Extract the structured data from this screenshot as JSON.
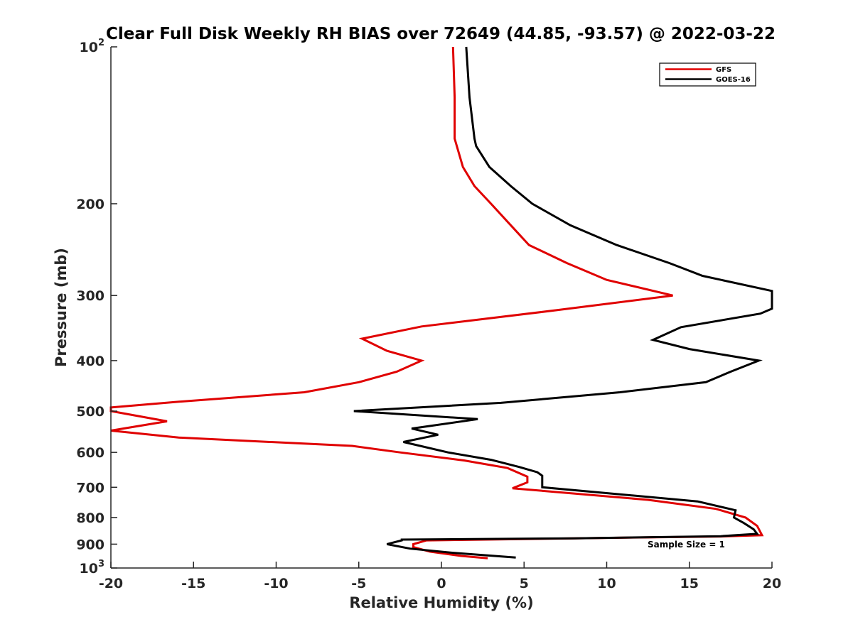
{
  "chart_data": {
    "type": "line",
    "title": "Clear Full Disk Weekly RH BIAS over 72649 (44.85, -93.57) @ 2022-03-22",
    "xlabel": "Relative Humidity (%)",
    "ylabel": "Pressure (mb)",
    "xlim": [
      -20,
      20
    ],
    "ylim": [
      100,
      1000
    ],
    "y_scale": "log",
    "y_reversed": true,
    "x_ticks": [
      "-20",
      "-15",
      "-10",
      "-5",
      "0",
      "5",
      "10",
      "15",
      "20"
    ],
    "y_ticks": [
      {
        "value": 100,
        "label": "10",
        "sup": "2"
      },
      {
        "value": 200,
        "label": "200",
        "sup": ""
      },
      {
        "value": 300,
        "label": "300",
        "sup": ""
      },
      {
        "value": 400,
        "label": "400",
        "sup": ""
      },
      {
        "value": 500,
        "label": "500",
        "sup": ""
      },
      {
        "value": 600,
        "label": "600",
        "sup": ""
      },
      {
        "value": 700,
        "label": "700",
        "sup": ""
      },
      {
        "value": 800,
        "label": "800",
        "sup": ""
      },
      {
        "value": 900,
        "label": "900",
        "sup": ""
      },
      {
        "value": 1000,
        "label": "10",
        "sup": "3"
      }
    ],
    "grid": false,
    "legend_position": "top-right",
    "annotation": "Sample Size = 1",
    "series": [
      {
        "name": "GFS",
        "color": "#e00000",
        "points": [
          [
            0.7,
            100
          ],
          [
            0.8,
            125
          ],
          [
            0.8,
            150
          ],
          [
            1.3,
            170
          ],
          [
            2.0,
            185
          ],
          [
            3.0,
            200
          ],
          [
            4.2,
            220
          ],
          [
            5.3,
            240
          ],
          [
            7.6,
            260
          ],
          [
            10.0,
            280
          ],
          [
            14.0,
            300
          ],
          [
            7.0,
            320
          ],
          [
            -1.2,
            344
          ],
          [
            -4.8,
            363
          ],
          [
            -3.3,
            383
          ],
          [
            -1.2,
            400
          ],
          [
            -2.7,
            420
          ],
          [
            -5.0,
            440
          ],
          [
            -8.3,
            460
          ],
          [
            -16.0,
            480
          ],
          [
            -20.0,
            492
          ],
          [
            -20.0,
            500
          ],
          [
            -16.6,
            523
          ],
          [
            -20.0,
            545
          ],
          [
            -15.9,
            562
          ],
          [
            -5.4,
            583
          ],
          [
            -2.5,
            600
          ],
          [
            1.4,
            622
          ],
          [
            4.0,
            643
          ],
          [
            5.2,
            668
          ],
          [
            5.2,
            685
          ],
          [
            4.3,
            703
          ],
          [
            12.5,
            740
          ],
          [
            16.6,
            770
          ],
          [
            18.4,
            800
          ],
          [
            19.1,
            830
          ],
          [
            19.4,
            865
          ],
          [
            16.9,
            870
          ],
          [
            8.0,
            877
          ],
          [
            -0.9,
            885
          ],
          [
            -1.7,
            900
          ],
          [
            -1.7,
            912
          ],
          [
            -0.7,
            930
          ],
          [
            1.2,
            948
          ],
          [
            2.8,
            958
          ]
        ]
      },
      {
        "name": "GOES-16",
        "color": "#000000",
        "points": [
          [
            1.5,
            100
          ],
          [
            1.7,
            125
          ],
          [
            2.0,
            150
          ],
          [
            2.1,
            155
          ],
          [
            2.9,
            170
          ],
          [
            4.2,
            185
          ],
          [
            5.5,
            200
          ],
          [
            7.8,
            220
          ],
          [
            10.6,
            240
          ],
          [
            13.8,
            260
          ],
          [
            15.8,
            275
          ],
          [
            20.0,
            294
          ],
          [
            20.0,
            318
          ],
          [
            19.3,
            325
          ],
          [
            14.5,
            345
          ],
          [
            12.8,
            365
          ],
          [
            15.0,
            380
          ],
          [
            19.2,
            400
          ],
          [
            17.5,
            420
          ],
          [
            16.0,
            440
          ],
          [
            10.8,
            460
          ],
          [
            3.6,
            482
          ],
          [
            -5.3,
            500
          ],
          [
            2.2,
            518
          ],
          [
            -1.8,
            540
          ],
          [
            -0.2,
            555
          ],
          [
            -2.3,
            573
          ],
          [
            0.4,
            600
          ],
          [
            3.0,
            620
          ],
          [
            4.7,
            640
          ],
          [
            5.8,
            655
          ],
          [
            6.1,
            665
          ],
          [
            6.1,
            685
          ],
          [
            6.1,
            700
          ],
          [
            15.5,
            745
          ],
          [
            17.8,
            775
          ],
          [
            17.7,
            800
          ],
          [
            18.3,
            820
          ],
          [
            18.9,
            843
          ],
          [
            19.1,
            860
          ],
          [
            16.9,
            869
          ],
          [
            8.0,
            877
          ],
          [
            -2.4,
            882
          ],
          [
            -2.4,
            885
          ],
          [
            -3.3,
            900
          ],
          [
            -1.9,
            918
          ],
          [
            0.7,
            935
          ],
          [
            4.5,
            955
          ]
        ]
      }
    ]
  }
}
